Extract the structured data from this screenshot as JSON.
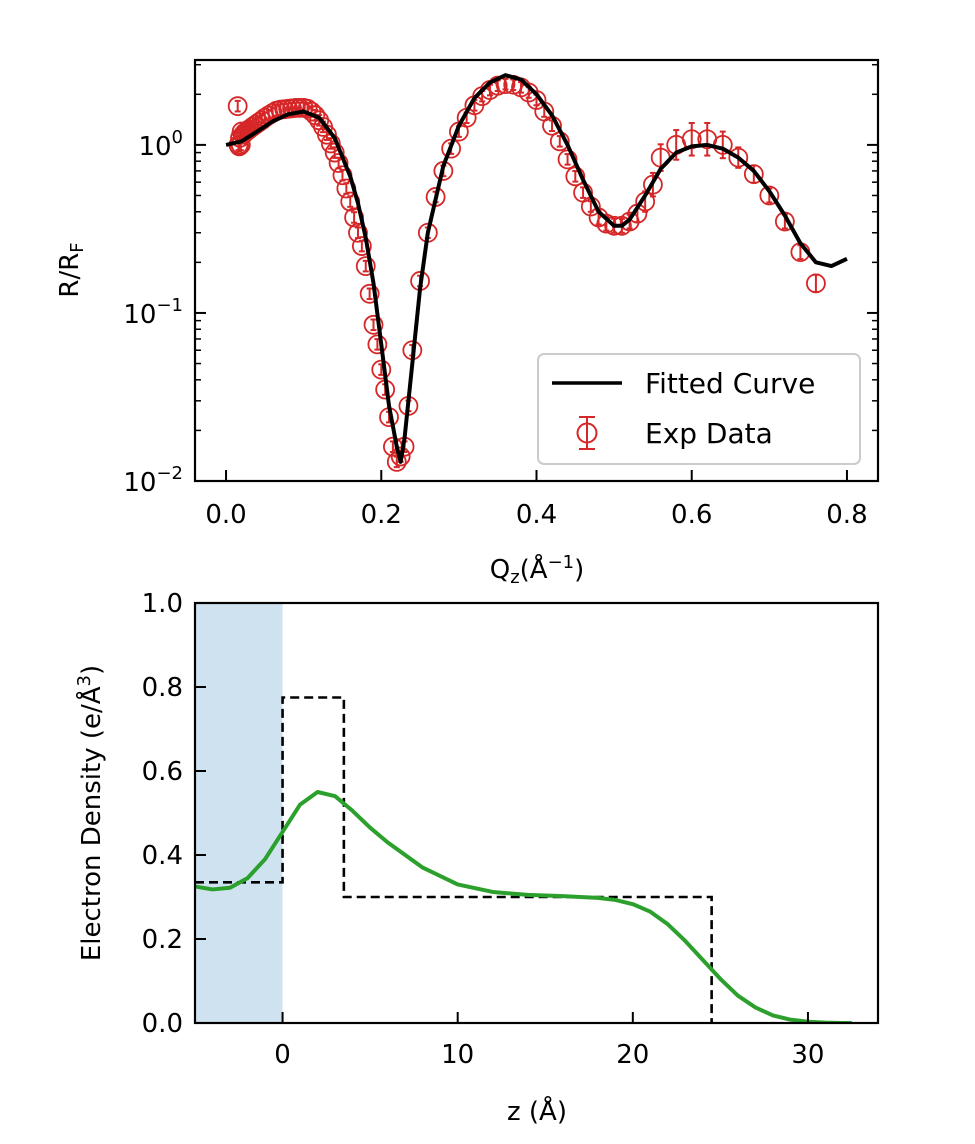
{
  "chart_data": [
    {
      "type": "line",
      "xlabel_main": "Q",
      "xlabel_sub": "z",
      "xlabel_paren": "(Å",
      "xlabel_sup": "−1",
      "xlabel_close": ")",
      "ylabel_main": "R/R",
      "ylabel_sub": "F",
      "xlim": [
        -0.04,
        0.84
      ],
      "ylim": [
        0.01,
        3.2
      ],
      "yscale": "log",
      "xticks": [
        0.0,
        0.2,
        0.4,
        0.6,
        0.8
      ],
      "xtick_labels": [
        "0.0",
        "0.2",
        "0.4",
        "0.6",
        "0.8"
      ],
      "yticks": [
        {
          "base": "10",
          "exp": "0",
          "value": 1
        },
        {
          "base": "10",
          "exp": "−1",
          "value": 0.1
        },
        {
          "base": "10",
          "exp": "−2",
          "value": 0.01
        }
      ],
      "legend": {
        "position": "lower right",
        "entries": [
          {
            "label": "Fitted Curve",
            "kind": "line",
            "color": "#000000"
          },
          {
            "label": "Exp Data",
            "kind": "errorbar",
            "color": "#d62728"
          }
        ]
      },
      "series": [
        {
          "name": "Fitted Curve",
          "color": "#000000",
          "x": [
            0.0,
            0.02,
            0.04,
            0.06,
            0.08,
            0.1,
            0.12,
            0.14,
            0.16,
            0.17,
            0.18,
            0.19,
            0.2,
            0.21,
            0.22,
            0.225,
            0.23,
            0.24,
            0.25,
            0.26,
            0.28,
            0.3,
            0.32,
            0.34,
            0.36,
            0.38,
            0.4,
            0.42,
            0.44,
            0.46,
            0.48,
            0.5,
            0.51,
            0.52,
            0.54,
            0.56,
            0.58,
            0.6,
            0.62,
            0.64,
            0.66,
            0.68,
            0.7,
            0.72,
            0.74,
            0.76,
            0.78,
            0.8
          ],
          "y": [
            1.0,
            1.05,
            1.2,
            1.38,
            1.52,
            1.58,
            1.45,
            1.1,
            0.65,
            0.45,
            0.28,
            0.15,
            0.065,
            0.028,
            0.016,
            0.013,
            0.018,
            0.05,
            0.14,
            0.3,
            0.75,
            1.3,
            1.9,
            2.35,
            2.6,
            2.45,
            2.0,
            1.5,
            1.0,
            0.62,
            0.4,
            0.33,
            0.33,
            0.36,
            0.5,
            0.72,
            0.9,
            0.98,
            1.0,
            0.95,
            0.84,
            0.7,
            0.53,
            0.38,
            0.26,
            0.2,
            0.19,
            0.21
          ]
        },
        {
          "name": "Exp Data",
          "color": "#d62728",
          "marker": "open-circle",
          "x": [
            0.015,
            0.016,
            0.017,
            0.018,
            0.019,
            0.02,
            0.022,
            0.024,
            0.026,
            0.028,
            0.03,
            0.034,
            0.038,
            0.042,
            0.046,
            0.05,
            0.055,
            0.06,
            0.065,
            0.07,
            0.075,
            0.08,
            0.085,
            0.09,
            0.095,
            0.1,
            0.105,
            0.11,
            0.115,
            0.12,
            0.125,
            0.13,
            0.135,
            0.14,
            0.145,
            0.15,
            0.155,
            0.16,
            0.165,
            0.17,
            0.175,
            0.18,
            0.185,
            0.19,
            0.195,
            0.2,
            0.205,
            0.21,
            0.215,
            0.22,
            0.225,
            0.23,
            0.235,
            0.24,
            0.25,
            0.26,
            0.27,
            0.28,
            0.29,
            0.3,
            0.31,
            0.32,
            0.33,
            0.34,
            0.35,
            0.36,
            0.37,
            0.38,
            0.39,
            0.4,
            0.41,
            0.42,
            0.43,
            0.44,
            0.45,
            0.46,
            0.47,
            0.48,
            0.49,
            0.5,
            0.51,
            0.52,
            0.53,
            0.54,
            0.55,
            0.56,
            0.58,
            0.6,
            0.62,
            0.64,
            0.66,
            0.68,
            0.7,
            0.72,
            0.74,
            0.76
          ],
          "y": [
            1.7,
            1.0,
            0.98,
            1.1,
            1.0,
            1.2,
            1.15,
            1.18,
            1.2,
            1.22,
            1.24,
            1.28,
            1.32,
            1.36,
            1.4,
            1.45,
            1.5,
            1.55,
            1.6,
            1.62,
            1.63,
            1.64,
            1.65,
            1.66,
            1.66,
            1.66,
            1.64,
            1.58,
            1.5,
            1.4,
            1.28,
            1.15,
            1.02,
            0.9,
            0.78,
            0.66,
            0.55,
            0.46,
            0.37,
            0.3,
            0.25,
            0.19,
            0.13,
            0.085,
            0.065,
            0.046,
            0.035,
            0.024,
            0.016,
            0.013,
            0.014,
            0.016,
            0.028,
            0.06,
            0.155,
            0.3,
            0.49,
            0.7,
            0.95,
            1.2,
            1.45,
            1.72,
            1.95,
            2.12,
            2.25,
            2.3,
            2.28,
            2.2,
            2.05,
            1.85,
            1.58,
            1.3,
            1.05,
            0.82,
            0.65,
            0.52,
            0.43,
            0.37,
            0.34,
            0.33,
            0.33,
            0.35,
            0.39,
            0.46,
            0.58,
            0.84,
            1.0,
            1.08,
            1.08,
            1.0,
            0.84,
            0.67,
            0.5,
            0.35,
            0.23,
            0.15
          ],
          "error": [
            0.03,
            0.03,
            0.03,
            0.03,
            0.03,
            0.03,
            0.03,
            0.03,
            0.03,
            0.03,
            0.03,
            0.03,
            0.03,
            0.03,
            0.03,
            0.03,
            0.03,
            0.03,
            0.03,
            0.03,
            0.03,
            0.03,
            0.03,
            0.03,
            0.03,
            0.03,
            0.03,
            0.03,
            0.03,
            0.03,
            0.03,
            0.03,
            0.03,
            0.03,
            0.03,
            0.03,
            0.03,
            0.03,
            0.03,
            0.03,
            0.03,
            0.03,
            0.03,
            0.03,
            0.03,
            0.03,
            0.03,
            0.03,
            0.03,
            0.03,
            0.03,
            0.03,
            0.03,
            0.03,
            0.03,
            0.03,
            0.03,
            0.03,
            0.03,
            0.03,
            0.03,
            0.03,
            0.03,
            0.03,
            0.03,
            0.03,
            0.03,
            0.03,
            0.03,
            0.03,
            0.03,
            0.03,
            0.03,
            0.03,
            0.03,
            0.03,
            0.03,
            0.04,
            0.04,
            0.04,
            0.04,
            0.04,
            0.05,
            0.06,
            0.07,
            0.08,
            0.09,
            0.1,
            0.1,
            0.08,
            0.06,
            0.05,
            0.04,
            0.04,
            0.04,
            0.05
          ]
        }
      ]
    },
    {
      "type": "line",
      "xlabel": "z (Å)",
      "ylabel_main": "Electron Density (e/Å",
      "ylabel_sup": "3",
      "ylabel_close": ")",
      "xlim": [
        -5,
        34
      ],
      "ylim": [
        0.0,
        1.0
      ],
      "xticks": [
        0,
        10,
        20,
        30
      ],
      "xtick_labels": [
        "0",
        "10",
        "20",
        "30"
      ],
      "yticks": [
        0.0,
        0.2,
        0.4,
        0.6,
        0.8,
        1.0
      ],
      "ytick_labels": [
        "0.0",
        "0.2",
        "0.4",
        "0.6",
        "0.8",
        "1.0"
      ],
      "shaded_region": {
        "x": [
          -5,
          0
        ],
        "color": "#cfe2ef"
      },
      "series": [
        {
          "name": "",
          "style": "dashed",
          "color": "#000000",
          "x": [
            -5,
            0,
            0,
            3.5,
            3.5,
            24.5,
            24.5
          ],
          "y": [
            0.335,
            0.335,
            0.775,
            0.775,
            0.3,
            0.3,
            0.0
          ]
        },
        {
          "name": "",
          "style": "solid",
          "color": "#2ca02c",
          "x": [
            -5,
            -4,
            -3,
            -2,
            -1,
            0,
            1,
            2,
            3,
            4,
            5,
            6,
            8,
            10,
            12,
            14,
            16,
            18,
            19,
            20,
            21,
            22,
            23,
            24,
            25,
            26,
            27,
            28,
            29,
            30,
            31,
            32,
            32.5
          ],
          "y": [
            0.325,
            0.318,
            0.322,
            0.345,
            0.39,
            0.455,
            0.52,
            0.55,
            0.54,
            0.505,
            0.465,
            0.43,
            0.37,
            0.33,
            0.312,
            0.305,
            0.302,
            0.298,
            0.293,
            0.283,
            0.265,
            0.235,
            0.195,
            0.15,
            0.105,
            0.065,
            0.037,
            0.018,
            0.008,
            0.003,
            0.001,
            0.0,
            0.0
          ]
        }
      ]
    }
  ]
}
